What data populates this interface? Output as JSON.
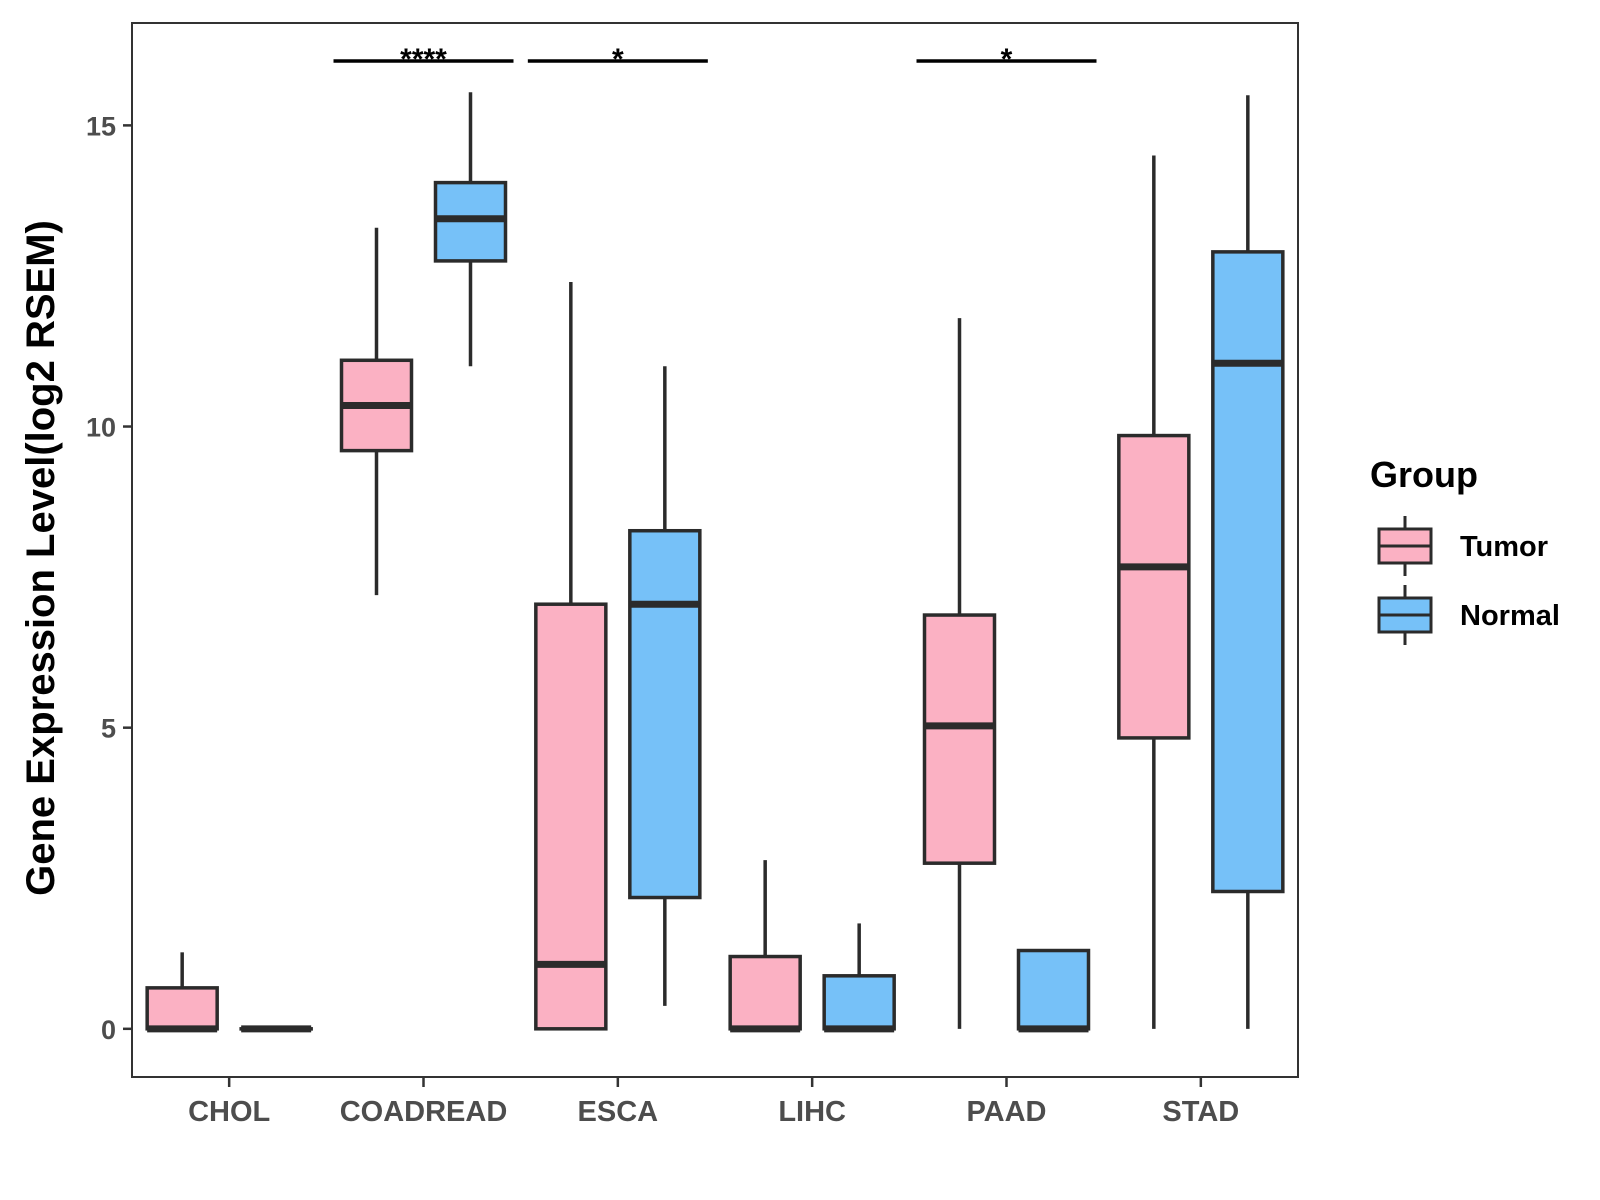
{
  "chart_data": {
    "type": "boxplot",
    "title": "",
    "xlabel": "",
    "ylabel": "Gene Expression Level(log2 RSEM)",
    "ylim": [
      -0.8,
      16.7
    ],
    "yticks": [
      0,
      5,
      10,
      15
    ],
    "categories": [
      "CHOL",
      "COADREAD",
      "ESCA",
      "LIHC",
      "PAAD",
      "STAD"
    ],
    "legend": {
      "title": "Group",
      "position": "right",
      "entries": [
        {
          "name": "Tumor",
          "color": "#fbb1c3"
        },
        {
          "name": "Normal",
          "color": "#76c1f8"
        }
      ]
    },
    "series": [
      {
        "name": "Tumor",
        "color": "#fbb1c3",
        "boxes": [
          {
            "category": "CHOL",
            "min": 0,
            "q1": 0,
            "median": 0,
            "q3": 0.68,
            "max": 1.27
          },
          {
            "category": "COADREAD",
            "min": 7.2,
            "q1": 9.6,
            "median": 10.35,
            "q3": 11.1,
            "max": 13.3
          },
          {
            "category": "ESCA",
            "min": 0,
            "q1": 0,
            "median": 1.07,
            "q3": 7.05,
            "max": 12.4
          },
          {
            "category": "LIHC",
            "min": 0,
            "q1": 0,
            "median": 0,
            "q3": 1.2,
            "max": 2.8
          },
          {
            "category": "PAAD",
            "min": 0,
            "q1": 2.75,
            "median": 5.03,
            "q3": 6.87,
            "max": 11.8
          },
          {
            "category": "STAD",
            "min": 0,
            "q1": 4.83,
            "median": 7.67,
            "q3": 9.85,
            "max": 14.5
          }
        ]
      },
      {
        "name": "Normal",
        "color": "#76c1f8",
        "boxes": [
          {
            "category": "CHOL",
            "min": 0,
            "q1": 0,
            "median": 0,
            "q3": 0,
            "max": 0
          },
          {
            "category": "COADREAD",
            "min": 11,
            "q1": 12.75,
            "median": 13.45,
            "q3": 14.05,
            "max": 15.55
          },
          {
            "category": "ESCA",
            "min": 0.38,
            "q1": 2.18,
            "median": 7.05,
            "q3": 8.27,
            "max": 11
          },
          {
            "category": "LIHC",
            "min": 0,
            "q1": 0,
            "median": 0,
            "q3": 0.88,
            "max": 1.75
          },
          {
            "category": "PAAD",
            "min": 0,
            "q1": 0,
            "median": 0,
            "q3": 1.3,
            "max": 1.3
          },
          {
            "category": "STAD",
            "min": 0,
            "q1": 2.28,
            "median": 11.05,
            "q3": 12.9,
            "max": 15.5
          }
        ]
      }
    ],
    "significance": [
      {
        "category": "COADREAD",
        "label": "****"
      },
      {
        "category": "ESCA",
        "label": "*"
      },
      {
        "category": "PAAD",
        "label": "*"
      }
    ],
    "grid": false
  }
}
